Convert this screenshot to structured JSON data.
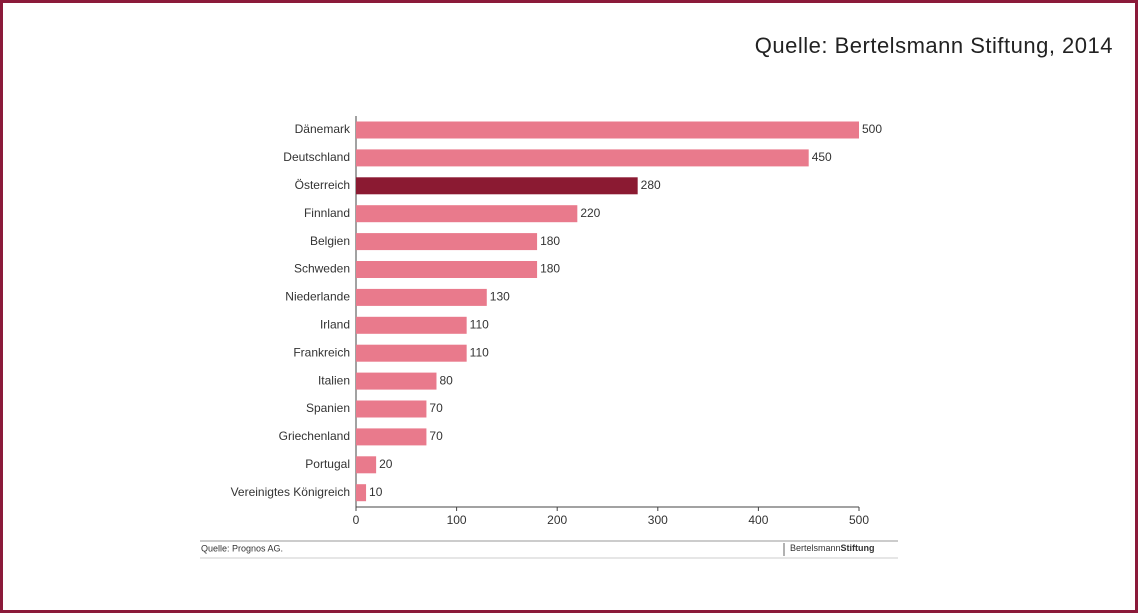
{
  "chart_data": {
    "type": "hbar",
    "source_top": "Quelle: Bertelsmann Stiftung, 2014",
    "source_bottom": "Quelle: Prognos AG.",
    "logo": [
      "Bertelsmann",
      "Stiftung"
    ],
    "categories": [
      "Dänemark",
      "Deutschland",
      "Österreich",
      "Finnland",
      "Belgien",
      "Schweden",
      "Niederlande",
      "Irland",
      "Frankreich",
      "Italien",
      "Spanien",
      "Griechenland",
      "Portugal",
      "Vereinigtes Königreich"
    ],
    "values": [
      500,
      450,
      280,
      220,
      180,
      180,
      130,
      110,
      110,
      80,
      70,
      70,
      20,
      10
    ],
    "colors": [
      "#e97a8c",
      "#e97a8c",
      "#8b1a32",
      "#e97a8c",
      "#e97a8c",
      "#e97a8c",
      "#e97a8c",
      "#e97a8c",
      "#e97a8c",
      "#e97a8c",
      "#e97a8c",
      "#e97a8c",
      "#e97a8c",
      "#e97a8c"
    ],
    "xlim": [
      0,
      500
    ],
    "xticks": [
      0,
      100,
      200,
      300,
      400,
      500
    ]
  }
}
